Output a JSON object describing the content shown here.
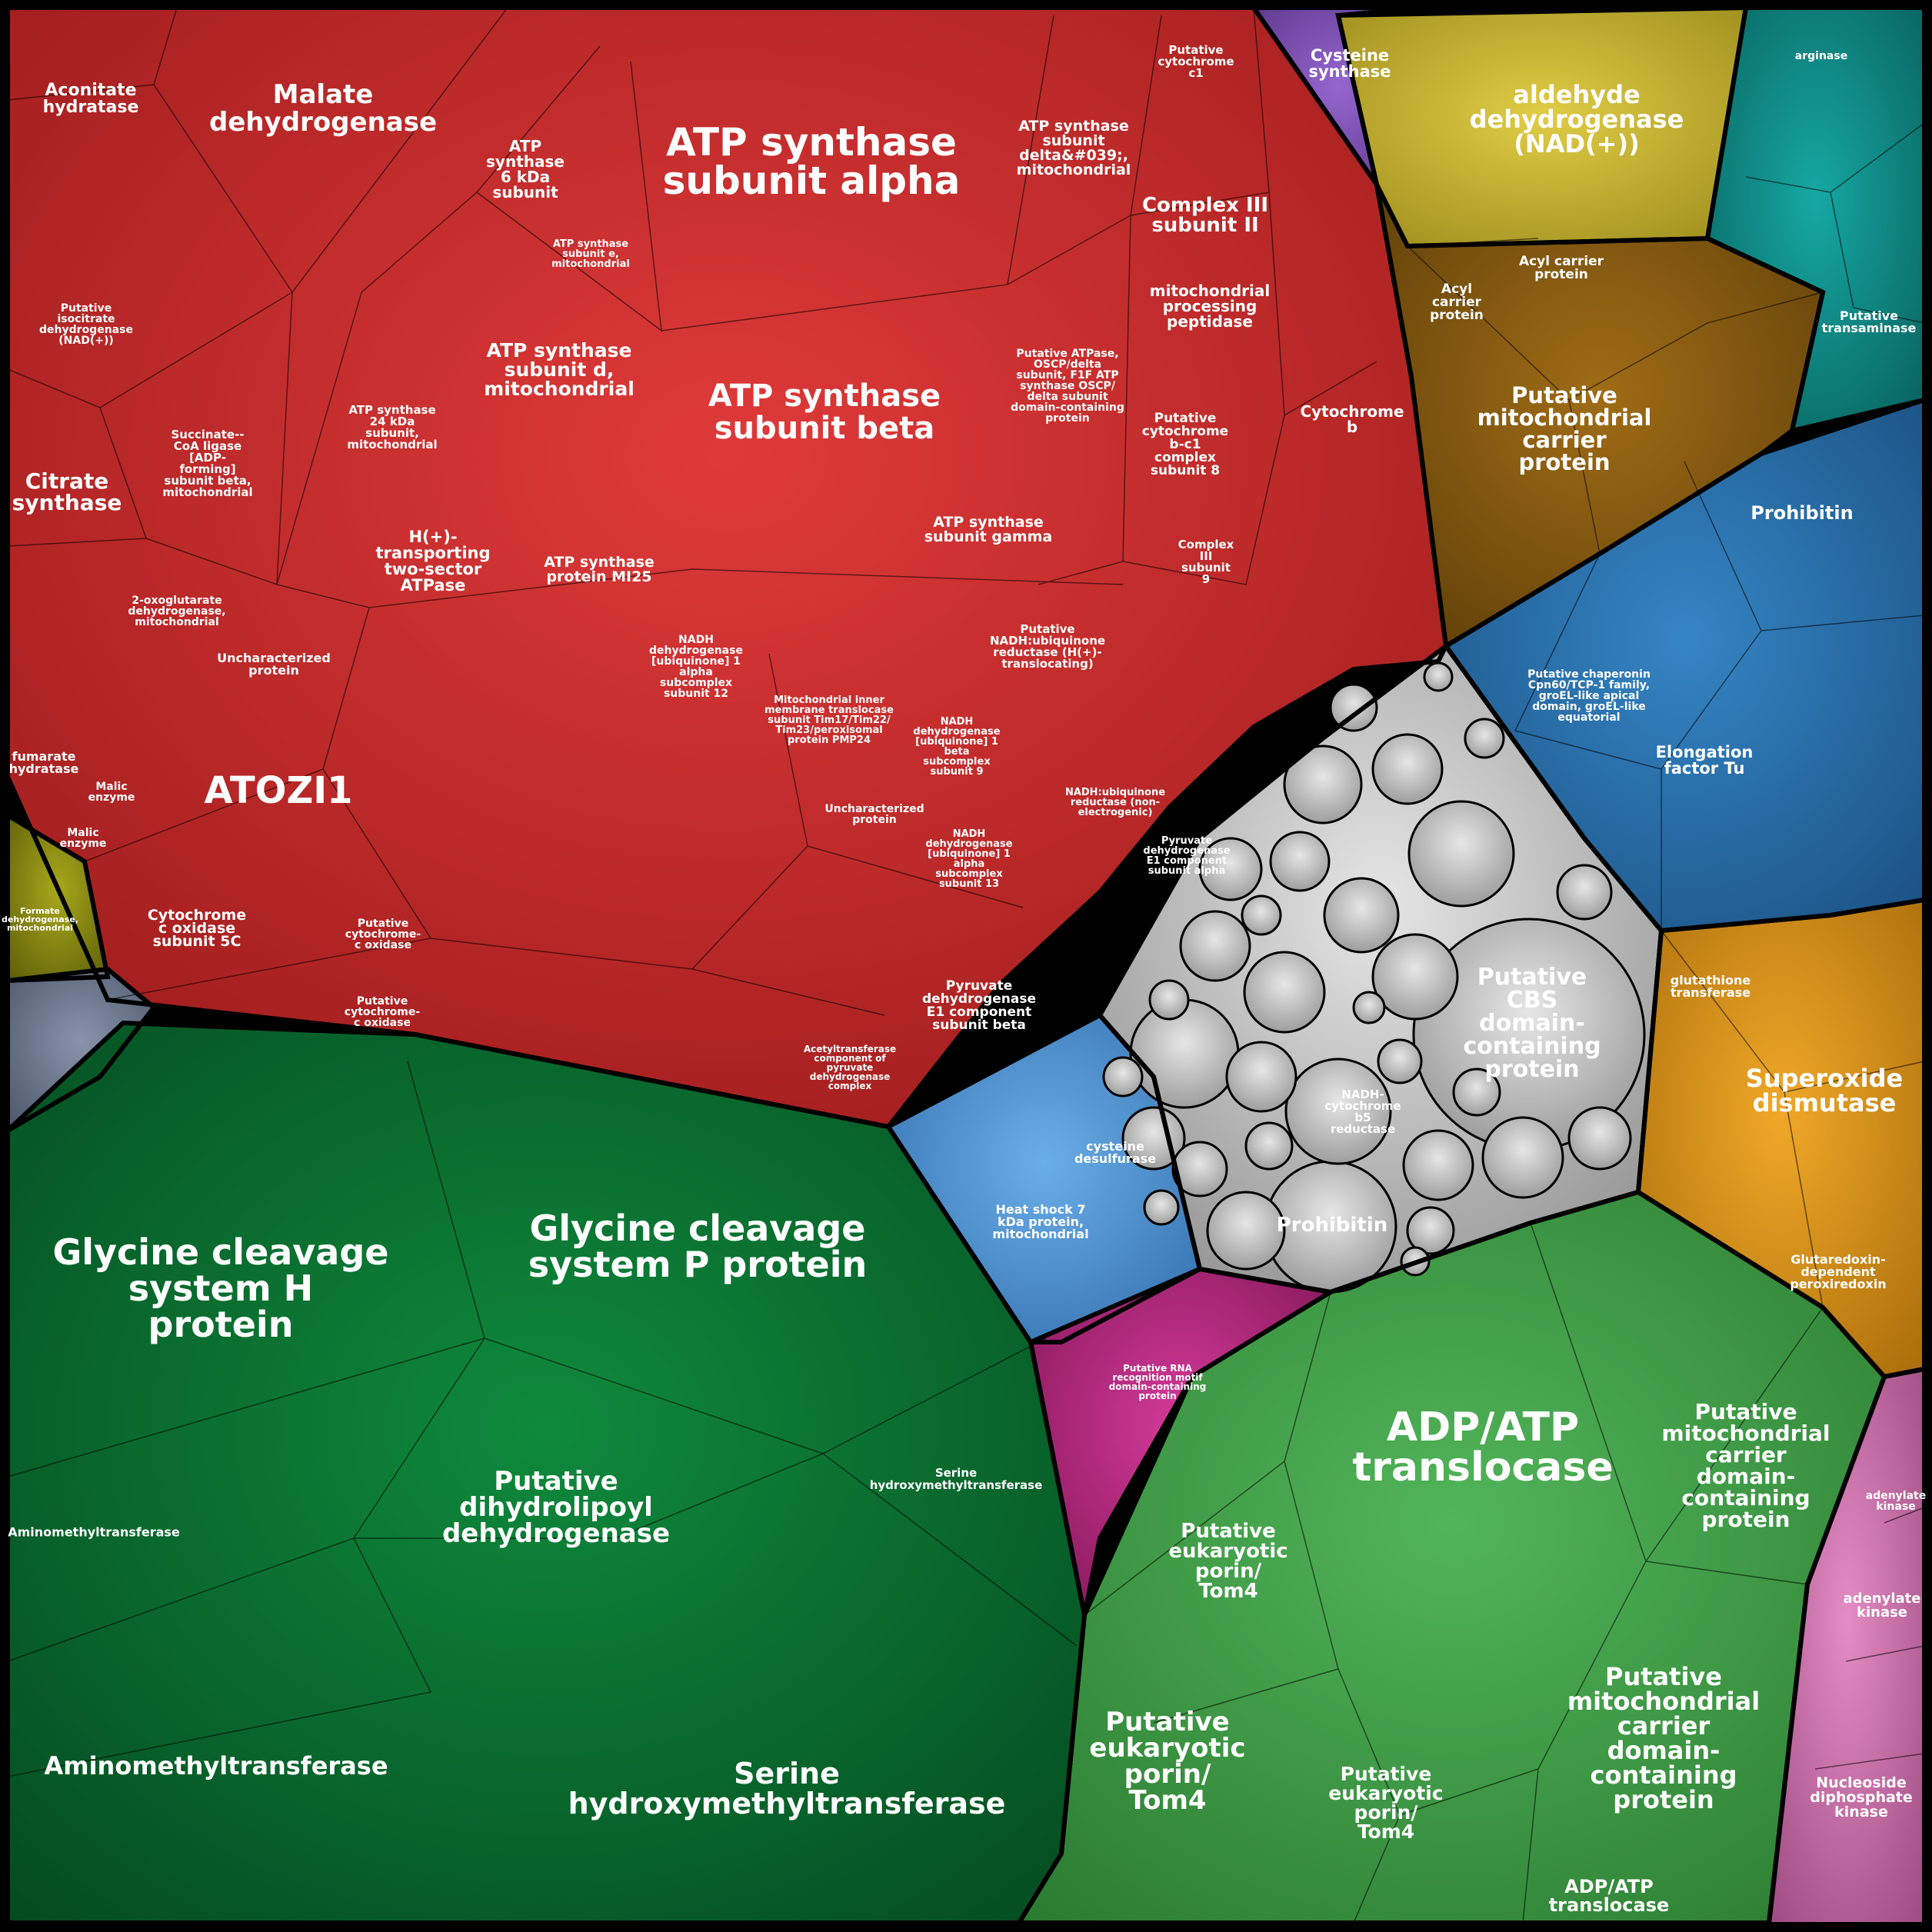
{
  "chart_data": {
    "type": "voronoi-treemap",
    "title": "",
    "groups": [
      {
        "name": "red",
        "color": "#c62a2a"
      },
      {
        "name": "dark-green",
        "color": "#0b6b30"
      },
      {
        "name": "green",
        "color": "#3f9a45"
      },
      {
        "name": "grey",
        "color": "#bdbdbd"
      },
      {
        "name": "blue",
        "color": "#2a6fa8"
      },
      {
        "name": "light-blue",
        "color": "#4c8fcf"
      },
      {
        "name": "teal",
        "color": "#0f8a87"
      },
      {
        "name": "brown",
        "color": "#7a5410"
      },
      {
        "name": "yellow",
        "color": "#c4b232"
      },
      {
        "name": "purple",
        "color": "#7b4fb0"
      },
      {
        "name": "orange",
        "color": "#d4901b"
      },
      {
        "name": "magenta",
        "color": "#b3267d"
      },
      {
        "name": "pink",
        "color": "#c86aa7"
      },
      {
        "name": "olive",
        "color": "#8a8a12"
      },
      {
        "name": "slate",
        "color": "#6e7a90"
      }
    ],
    "labels": [
      {
        "text": "ATP synthase subunit alpha",
        "group": "red"
      },
      {
        "text": "ATP synthase subunit beta",
        "group": "red"
      },
      {
        "text": "Malate dehydrogenase",
        "group": "red"
      },
      {
        "text": "Aconitate hydratase",
        "group": "red"
      },
      {
        "text": "Citrate synthase",
        "group": "red"
      },
      {
        "text": "ATOZI1",
        "group": "red"
      },
      {
        "text": "ATP synthase 6 kDa subunit",
        "group": "red"
      },
      {
        "text": "ATP synthase subunit d, mitochondrial",
        "group": "red"
      },
      {
        "text": "ATP synthase subunit delta&#039;, mitochondrial",
        "group": "red"
      },
      {
        "text": "Complex III subunit II",
        "group": "red"
      },
      {
        "text": "mitochondrial processing peptidase",
        "group": "red"
      },
      {
        "text": "Cytochrome b",
        "group": "red"
      },
      {
        "text": "H(+)-transporting two-sector ATPase",
        "group": "red"
      },
      {
        "text": "ATP synthase protein MI25",
        "group": "red"
      },
      {
        "text": "ATP synthase subunit gamma",
        "group": "red"
      },
      {
        "text": "Succinate--CoA ligase [ADP-forming] subunit beta, mitochondrial",
        "group": "red"
      },
      {
        "text": "Uncharacterized protein",
        "group": "red"
      },
      {
        "text": "Cytochrome c oxidase subunit 5C",
        "group": "red"
      },
      {
        "text": "Pyruvate dehydrogenase E1 component subunit beta",
        "group": "red"
      },
      {
        "text": "Glycine cleavage system H protein",
        "group": "dark-green"
      },
      {
        "text": "Glycine cleavage system P protein",
        "group": "dark-green"
      },
      {
        "text": "Putative dihydrolipoyl dehydrogenase",
        "group": "dark-green"
      },
      {
        "text": "Aminomethyltransferase",
        "group": "dark-green"
      },
      {
        "text": "Serine hydroxymethyltransferase",
        "group": "dark-green"
      },
      {
        "text": "ADP/ATP translocase",
        "group": "green"
      },
      {
        "text": "Putative mitochondrial carrier domain-containing protein",
        "group": "green"
      },
      {
        "text": "Putative eukaryotic porin/ Tom4",
        "group": "green"
      },
      {
        "text": "Putative CBS domain-containing protein",
        "group": "grey"
      },
      {
        "text": "Prohibitin",
        "group": "grey"
      },
      {
        "text": "NADH-cytochrome b5 reductase",
        "group": "grey"
      },
      {
        "text": "Heat shock 7 kDa protein, mitochondrial",
        "group": "light-blue"
      },
      {
        "text": "cysteine desulfurase",
        "group": "light-blue"
      },
      {
        "text": "Prohibitin",
        "group": "blue"
      },
      {
        "text": "Elongation factor Tu",
        "group": "blue"
      },
      {
        "text": "Putative chaperonin Cpn60/TCP-1 family, groEL-like apical domain, groEL-like equatorial",
        "group": "blue"
      },
      {
        "text": "aldehyde dehydrogenase (NAD(+))",
        "group": "yellow"
      },
      {
        "text": "Cysteine synthase",
        "group": "purple"
      },
      {
        "text": "Putative mitochondrial carrier protein",
        "group": "brown"
      },
      {
        "text": "Acyl carrier protein",
        "group": "brown"
      },
      {
        "text": "Superoxide dismutase",
        "group": "orange"
      },
      {
        "text": "Glutaredoxin-dependent peroxiredoxin",
        "group": "orange"
      },
      {
        "text": "glutathione transferase",
        "group": "orange"
      },
      {
        "text": "Putative transaminase",
        "group": "teal"
      },
      {
        "text": "arginase",
        "group": "teal"
      },
      {
        "text": "Putative RNA recognition motif domain-containing protein",
        "group": "magenta"
      },
      {
        "text": "adenylate kinase",
        "group": "pink"
      },
      {
        "text": "Nucleoside diphosphate kinase",
        "group": "pink"
      },
      {
        "text": "Formate dehydrogenase, mitochondrial",
        "group": "olive"
      }
    ]
  },
  "labels": {
    "atp_alpha": "ATP synthase subunit alpha",
    "atp_beta": "ATP synthase subunit beta",
    "malate": "Malate dehydrogenase",
    "aconitate": "Aconitate hydratase",
    "citrate": "Citrate synthase",
    "atozi1": "ATOZI1",
    "atp6k": "ATP synthase 6 kDa subunit",
    "atp_d": "ATP synthase subunit d, mitochondrial",
    "atp_delta": "ATP synthase subunit delta&#039;, mitochondrial",
    "complex3": "Complex III subunit II",
    "mpp": "mitochondrial processing peptidase",
    "cytb": "Cytochrome b",
    "h_atpase": "H(+)-transporting two-sector ATPase",
    "atp_mi25": "ATP synthase protein MI25",
    "atp_gamma": "ATP synthase subunit gamma",
    "succ_coa": "Succinate--CoA ligase [ADP-forming] subunit beta, mitochondrial",
    "unchar": "Uncharacterized protein",
    "cox5c": "Cytochrome c oxidase subunit 5C",
    "pdh_beta": "Pyruvate dehydrogenase E1 component subunit beta",
    "gcs_h": "Glycine cleavage system H protein",
    "gcs_p": "Glycine cleavage system P protein",
    "dld": "Putative dihydrolipoyl dehydrogenase",
    "amt1": "Aminomethyltransferase",
    "amt2": "Aminomethyltransferase",
    "shmt": "Serine hydroxymethyltransferase",
    "aac": "ADP/ATP translocase",
    "mcp1": "Putative mitochondrial carrier domain-containing protein",
    "mcp2": "Putative mitochondrial carrier domain-containing protein",
    "porin1": "Putative eukaryotic porin/ Tom4",
    "porin2": "Putative eukaryotic porin/ Tom4",
    "porin3": "Putative eukaryotic porin/ Tom4",
    "cbs": "Putative CBS domain-containing protein",
    "prohib_grey": "Prohibitin",
    "nadh_b5": "NADH-cytochrome b5 reductase",
    "hsp7": "Heat shock 7 kDa protein, mitochondrial",
    "cysdes": "cysteine desulfurase",
    "prohib_blue": "Prohibitin",
    "eftu": "Elongation factor Tu",
    "cpn60": "Putative chaperonin Cpn60/TCP-1 family, groEL-like apical domain, groEL-like equatorial",
    "aldh": "aldehyde dehydrogenase (NAD(+))",
    "cys_syn": "Cysteine synthase",
    "mcp_brown": "Putative mitochondrial carrier protein",
    "acp": "Acyl carrier protein",
    "sod": "Superoxide dismutase",
    "prx": "Glutaredoxin-dependent peroxiredoxin",
    "gst": "glutathione transferase",
    "transam": "Putative transaminase",
    "arginase": "arginase",
    "rrm": "Putative RNA recognition motif domain-containing protein",
    "adk": "adenylate kinase",
    "ndk": "Nucleoside diphosphate kinase",
    "fdh": "Formate dehydrogenase, mitochondrial",
    "aac2": "ADP/ATP translocase",
    "serine_small": "Serine hydroxymethyltransferase",
    "pdh_alpha": "Pyruvate dehydrogenase E1 component subunit alpha",
    "nadh_ubq": "NADH:ubiquinone reductase (H(+)-translocating)",
    "mito_inner": "Mitochondrial inner membrane translocase subunit Tim17/Tim22/Tim23/peroxisomal protein PMP24",
    "nadh12": "NADH dehydrogenase [ubiquinone] 1 alpha subcomplex subunit 12",
    "nadh9": "NADH dehydrogenase [ubiquinone] 1 beta subcomplex subunit 9",
    "nadh13": "NADH dehydrogenase [ubiquinone] 1 alpha subcomplex subunit 13",
    "cytc1": "Putative cytochrome c1",
    "rieske": "Putative cytochrome b-c1 complex subunit 8",
    "c3s9": "Complex III subunit 9",
    "atp_ospc": "Putative ATPase, OSCP/delta subunit, F1F ATP synthase OSCP/delta subunit domain-containing protein",
    "atp24": "ATP synthase 24 kDa subunit, mitochondrial",
    "isocitrate": "Putative isocitrate dehydrogenase (NAD(+))",
    "oxoglut": "2-oxoglutarate dehydrogenase, mitochondrial",
    "fumarate": "fumarate hydratase",
    "malic": "Malic enzyme",
    "acyl_carrier2": "Acyl carrier protein",
    "atp_e": "ATP synthase subunit e, mitochondrial",
    "cytc_ox": "Putative cytochrome-c oxidase",
    "acetyltrans": "Acetyltransferase component of pyruvate dehydrogenase complex",
    "nadh_nonelec": "NADH:ubiquinone reductase (non-electrogenic)"
  }
}
